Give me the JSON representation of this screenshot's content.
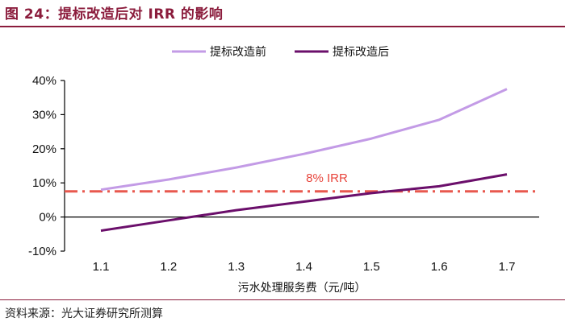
{
  "figure": {
    "title": "图 24：提标改造后对 IRR 的影响",
    "source": "资料来源：光大证券研究所测算"
  },
  "colors": {
    "title": "#8B1C3C",
    "before": "#C39BE6",
    "after": "#6B0F6B",
    "reference": "#E8584E"
  },
  "chart_data": {
    "type": "line",
    "title": "",
    "xlabel": "污水处理服务费（元/吨）",
    "ylabel": "",
    "x": [
      1.1,
      1.2,
      1.3,
      1.4,
      1.5,
      1.6,
      1.7
    ],
    "x_tick_labels": [
      "1.1",
      "1.2",
      "1.3",
      "1.4",
      "1.5",
      "1.6",
      "1.7"
    ],
    "ylim": [
      -10,
      40
    ],
    "y_ticks": [
      -10,
      0,
      10,
      20,
      30,
      40
    ],
    "y_tick_labels": [
      "-10%",
      "0%",
      "10%",
      "20%",
      "30%",
      "40%"
    ],
    "series": [
      {
        "name": "提标改造前",
        "values": [
          8,
          11,
          14.5,
          18.5,
          23,
          28.5,
          34,
          37.5
        ],
        "x": [
          1.1,
          1.2,
          1.3,
          1.4,
          1.5,
          1.6,
          1.7,
          1.7
        ],
        "color": "#C39BE6"
      },
      {
        "name": "提标改造后",
        "values": [
          -4,
          -1,
          2,
          4.5,
          7,
          9,
          12.5
        ],
        "x": [
          1.1,
          1.2,
          1.3,
          1.4,
          1.5,
          1.6,
          1.7
        ],
        "color": "#6B0F6B"
      }
    ],
    "reference_line": {
      "label": "8% IRR",
      "value": 7.5,
      "style": "dash-dot"
    },
    "legend_position": "top-center",
    "grid": false
  }
}
